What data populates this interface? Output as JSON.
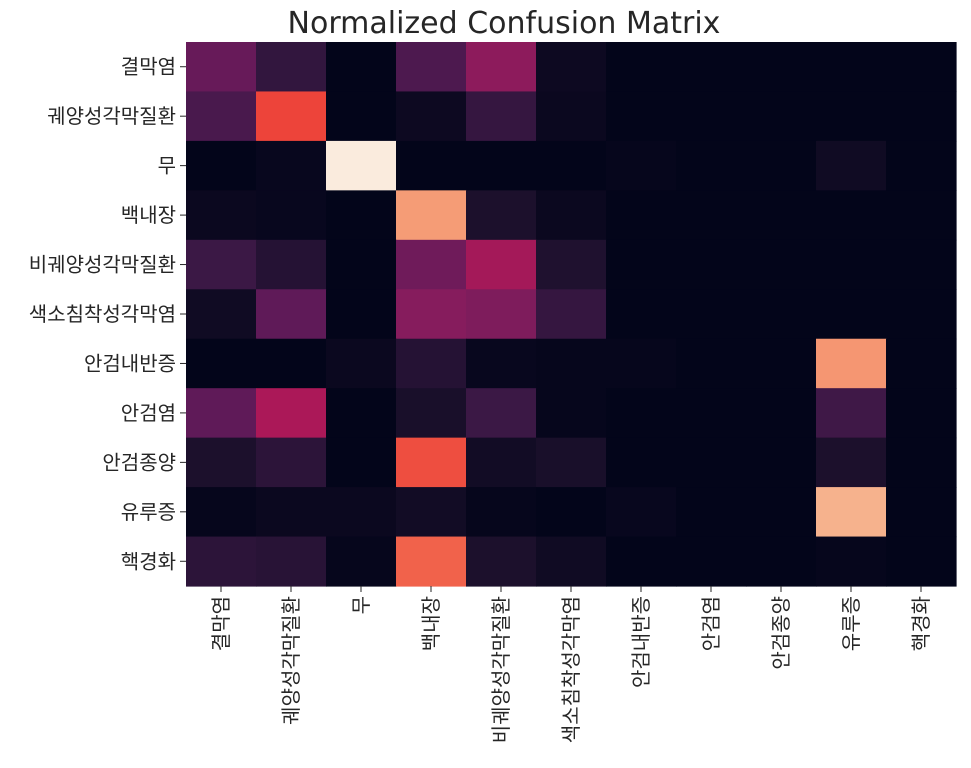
{
  "chart_data": {
    "type": "heatmap",
    "title": "Normalized Confusion Matrix",
    "xlabel": "",
    "ylabel": "",
    "colormap": "rocket",
    "value_range": [
      0,
      1
    ],
    "colorbar": false,
    "grid": false,
    "x_categories": [
      "결막염",
      "궤양성각막질환",
      "무",
      "백내장",
      "비궤양성각막질환",
      "색소침착성각막염",
      "안검내반증",
      "안검염",
      "안검종양",
      "유루증",
      "핵경화"
    ],
    "y_categories": [
      "결막염",
      "궤양성각막질환",
      "무",
      "백내장",
      "비궤양성각막질환",
      "색소침착성각막염",
      "안검내반증",
      "안검염",
      "안검종양",
      "유루증",
      "핵경화"
    ],
    "values": [
      [
        0.32,
        0.17,
        0.0,
        0.25,
        0.42,
        0.04,
        0.0,
        0.0,
        0.0,
        0.0,
        0.0
      ],
      [
        0.24,
        0.7,
        0.0,
        0.04,
        0.18,
        0.03,
        0.0,
        0.0,
        0.0,
        0.0,
        0.0
      ],
      [
        0.0,
        0.02,
        1.0,
        0.0,
        0.0,
        0.0,
        0.01,
        0.0,
        0.0,
        0.05,
        0.0
      ],
      [
        0.03,
        0.02,
        0.0,
        0.87,
        0.1,
        0.03,
        0.0,
        0.0,
        0.0,
        0.0,
        0.0
      ],
      [
        0.2,
        0.13,
        0.0,
        0.34,
        0.48,
        0.11,
        0.0,
        0.0,
        0.0,
        0.0,
        0.0
      ],
      [
        0.05,
        0.3,
        0.0,
        0.4,
        0.38,
        0.18,
        0.0,
        0.0,
        0.0,
        0.0,
        0.0
      ],
      [
        0.0,
        0.0,
        0.03,
        0.13,
        0.02,
        0.01,
        0.01,
        0.0,
        0.0,
        0.86,
        0.0
      ],
      [
        0.3,
        0.5,
        0.0,
        0.09,
        0.2,
        0.01,
        0.0,
        0.0,
        0.0,
        0.21,
        0.0
      ],
      [
        0.1,
        0.15,
        0.0,
        0.72,
        0.06,
        0.09,
        0.0,
        0.0,
        0.0,
        0.1,
        0.0
      ],
      [
        0.01,
        0.03,
        0.03,
        0.06,
        0.01,
        0.0,
        0.02,
        0.0,
        0.0,
        0.91,
        0.0
      ],
      [
        0.15,
        0.14,
        0.01,
        0.76,
        0.1,
        0.05,
        0.0,
        0.0,
        0.0,
        0.01,
        0.0
      ]
    ]
  }
}
